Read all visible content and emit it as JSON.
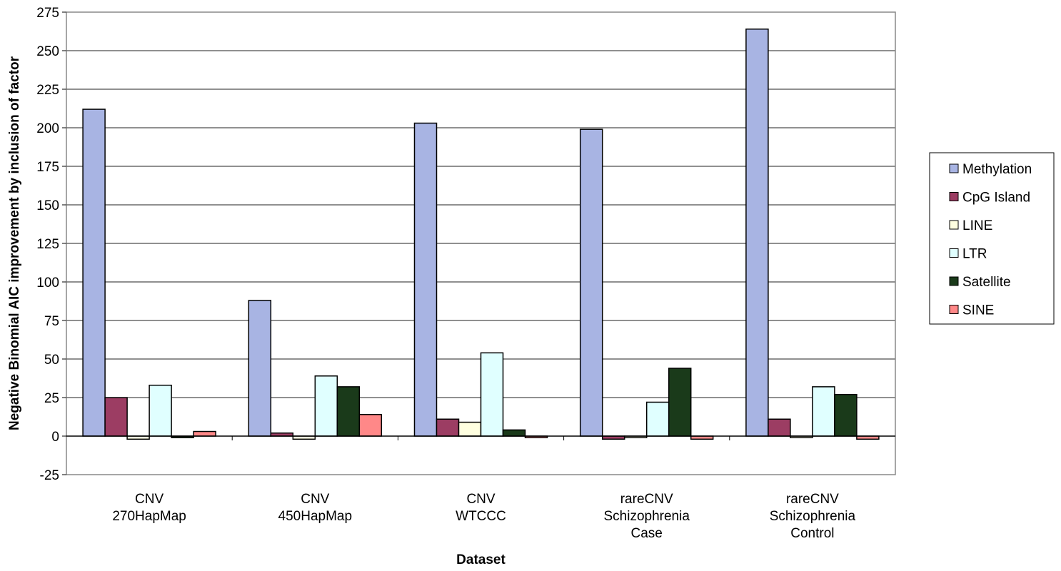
{
  "chart_data": {
    "type": "bar",
    "xlabel": "Dataset",
    "ylabel": "Negative Binomial AIC improvement by inclusion of factor",
    "ylim": [
      -25,
      275
    ],
    "yticks": [
      -25,
      0,
      25,
      50,
      75,
      100,
      125,
      150,
      175,
      200,
      225,
      250,
      275
    ],
    "grid": true,
    "legend_position": "right",
    "categories": [
      [
        "CNV",
        "270HapMap"
      ],
      [
        "CNV",
        "450HapMap"
      ],
      [
        "CNV",
        "WTCCC"
      ],
      [
        "rareCNV",
        "Schizophrenia",
        "Case"
      ],
      [
        "rareCNV",
        "Schizophrenia",
        "Control"
      ]
    ],
    "series": [
      {
        "name": "Methylation",
        "color": "#a8b4e3",
        "values": [
          212,
          88,
          203,
          199,
          264
        ]
      },
      {
        "name": "CpG Island",
        "color": "#9c3d63",
        "values": [
          25,
          2,
          11,
          -2,
          11
        ]
      },
      {
        "name": "LINE",
        "color": "#ffffe0",
        "values": [
          -2,
          -2,
          9,
          -1,
          -1
        ]
      },
      {
        "name": "LTR",
        "color": "#e0ffff",
        "values": [
          33,
          39,
          54,
          22,
          32
        ]
      },
      {
        "name": "Satellite",
        "color": "#1a3a1a",
        "values": [
          -1,
          32,
          4,
          44,
          27
        ]
      },
      {
        "name": "SINE",
        "color": "#ff8888",
        "values": [
          3,
          14,
          -1,
          -2,
          -2
        ]
      }
    ]
  }
}
